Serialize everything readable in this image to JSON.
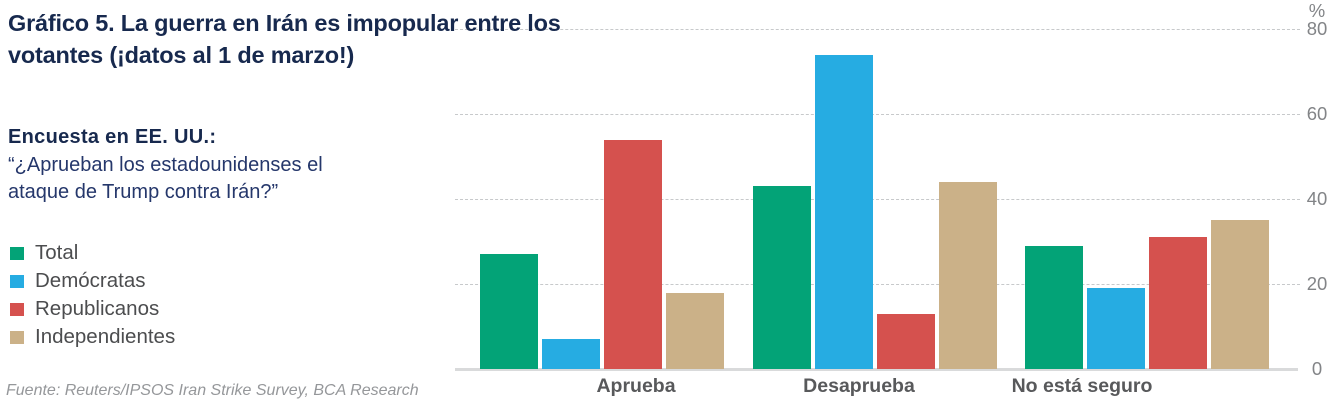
{
  "header": {
    "title_line1": "Gráfico 5. La guerra en Irán es impopular entre los",
    "title_line2": "votantes (¡datos al 1 de marzo!)"
  },
  "survey": {
    "label": "Encuesta en EE. UU.:",
    "question_line1": "“¿Aprueban los estadounidenses el",
    "question_line2": "ataque de Trump contra Irán?”"
  },
  "source": "Fuente: Reuters/IPSOS Iran Strike Survey, BCA Research",
  "chart_data": {
    "type": "bar",
    "title": "Gráfico 5. La guerra en Irán es impopular entre los votantes (¡datos al 1 de marzo!)",
    "categories": [
      "Aprueba",
      "Desaprueba",
      "No está seguro"
    ],
    "series": [
      {
        "name": "Total",
        "color": "#03A377",
        "values": [
          27,
          43,
          29
        ]
      },
      {
        "name": "Demócratas",
        "color": "#26ACE2",
        "values": [
          7,
          74,
          19
        ]
      },
      {
        "name": "Republicanos",
        "color": "#D5514E",
        "values": [
          54,
          13,
          31
        ]
      },
      {
        "name": "Independientes",
        "color": "#CBB188",
        "values": [
          18,
          44,
          35
        ]
      }
    ],
    "ylabel": "%",
    "yticks": [
      0,
      20,
      40,
      60,
      80
    ],
    "ylim": [
      0,
      80
    ],
    "grid": "horizontal-dashed",
    "legend_position": "left",
    "colors": {
      "title_text": "#17294E",
      "body_text": "#25376B",
      "legend_text": "#4C4D4F",
      "axis_text": "#828487",
      "category_text": "#58595B",
      "gridline": "#C7C9CB",
      "baseline": "#D9DADB",
      "source_text": "#95979A"
    }
  }
}
